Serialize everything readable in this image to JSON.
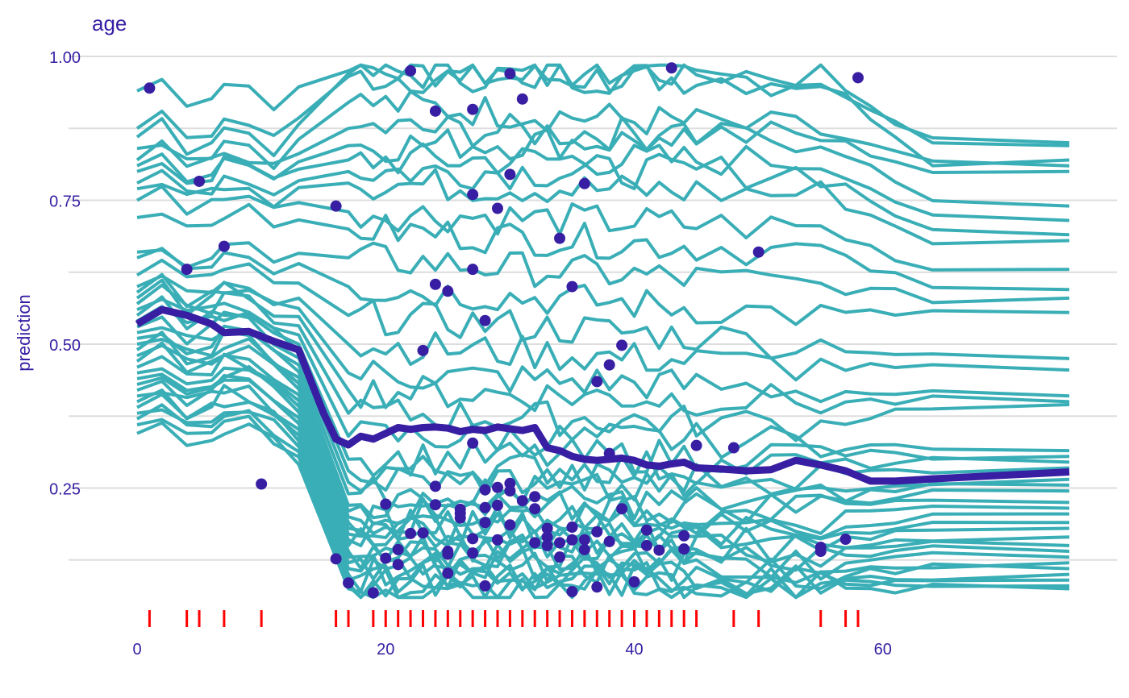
{
  "chart_data": {
    "type": "line",
    "title": "age",
    "xlabel": "",
    "ylabel": "prediction",
    "xlim": [
      0,
      75
    ],
    "ylim": [
      0.05,
      1.02
    ],
    "x_ticks": [
      0,
      20,
      40,
      60
    ],
    "x_tick_labels": [
      "0",
      "20",
      "40",
      "60"
    ],
    "y_ticks": [
      0.25,
      0.5,
      0.75,
      1.0
    ],
    "y_tick_labels": [
      "0.25",
      "0.50",
      "0.75",
      "1.00"
    ],
    "grid": true,
    "x_grid": [
      0,
      10,
      20,
      30,
      40,
      50,
      60,
      70
    ],
    "colors": {
      "profiles": "#3aaeb6",
      "mean": "#371ea3",
      "points": "#371ea3",
      "rug": "#ff0000",
      "text": "#371ea3",
      "grid": "#dddddd"
    },
    "x": [
      0,
      2,
      4,
      6,
      7,
      9,
      11,
      13,
      15,
      16,
      17,
      18,
      19,
      20,
      21,
      22,
      23,
      24,
      25,
      26,
      27,
      28,
      29,
      30,
      31,
      32,
      33,
      34,
      35,
      36,
      37,
      38,
      39,
      40,
      41,
      42,
      43,
      44,
      45,
      47,
      49,
      51,
      53,
      55,
      57,
      59,
      61,
      64,
      75
    ],
    "mean_profile": {
      "name": "mean",
      "y": [
        0.535,
        0.56,
        0.55,
        0.535,
        0.52,
        0.522,
        0.505,
        0.49,
        0.38,
        0.335,
        0.325,
        0.34,
        0.335,
        0.345,
        0.355,
        0.352,
        0.355,
        0.356,
        0.354,
        0.348,
        0.352,
        0.35,
        0.356,
        0.353,
        0.35,
        0.355,
        0.32,
        0.315,
        0.305,
        0.3,
        0.298,
        0.3,
        0.302,
        0.298,
        0.29,
        0.288,
        0.292,
        0.295,
        0.285,
        0.283,
        0.28,
        0.282,
        0.298,
        0.29,
        0.28,
        0.262,
        0.262,
        0.266,
        0.278
      ]
    },
    "profiles": [
      {
        "start": 0.94,
        "y_young": 0.94,
        "y_mid": 0.975,
        "y_old": 0.97,
        "y_end": 0.85
      },
      {
        "start": 0.875,
        "y_young": 0.875,
        "y_mid": 0.965,
        "y_old": 0.96,
        "y_end": 0.845
      },
      {
        "start": 0.86,
        "y_young": 0.86,
        "y_mid": 0.97,
        "y_old": 0.96,
        "y_end": 0.82
      },
      {
        "start": 0.84,
        "y_young": 0.84,
        "y_mid": 0.92,
        "y_old": 0.87,
        "y_end": 0.81
      },
      {
        "start": 0.82,
        "y_young": 0.82,
        "y_mid": 0.875,
        "y_old": 0.86,
        "y_end": 0.8
      },
      {
        "start": 0.81,
        "y_young": 0.81,
        "y_mid": 0.845,
        "y_old": 0.86,
        "y_end": 0.74
      },
      {
        "start": 0.8,
        "y_young": 0.8,
        "y_mid": 0.82,
        "y_old": 0.82,
        "y_end": 0.715
      },
      {
        "start": 0.78,
        "y_young": 0.78,
        "y_mid": 0.8,
        "y_old": 0.8,
        "y_end": 0.69
      },
      {
        "start": 0.77,
        "y_young": 0.77,
        "y_mid": 0.78,
        "y_old": 0.76,
        "y_end": 0.68
      },
      {
        "start": 0.75,
        "y_young": 0.75,
        "y_mid": 0.73,
        "y_old": 0.7,
        "y_end": 0.63
      },
      {
        "start": 0.72,
        "y_young": 0.72,
        "y_mid": 0.7,
        "y_old": 0.66,
        "y_end": 0.595
      },
      {
        "start": 0.66,
        "y_young": 0.66,
        "y_mid": 0.65,
        "y_old": 0.6,
        "y_end": 0.58
      },
      {
        "start": 0.65,
        "y_young": 0.65,
        "y_mid": 0.6,
        "y_old": 0.55,
        "y_end": 0.555
      },
      {
        "start": 0.62,
        "y_young": 0.62,
        "y_mid": 0.55,
        "y_old": 0.5,
        "y_end": 0.475
      },
      {
        "start": 0.6,
        "y_young": 0.6,
        "y_mid": 0.5,
        "y_old": 0.46,
        "y_end": 0.455
      },
      {
        "start": 0.59,
        "y_young": 0.59,
        "y_mid": 0.45,
        "y_old": 0.42,
        "y_end": 0.41
      },
      {
        "start": 0.58,
        "y_young": 0.58,
        "y_mid": 0.42,
        "y_old": 0.4,
        "y_end": 0.4
      },
      {
        "start": 0.57,
        "y_young": 0.57,
        "y_mid": 0.38,
        "y_old": 0.36,
        "y_end": 0.395
      },
      {
        "start": 0.56,
        "y_young": 0.56,
        "y_mid": 0.34,
        "y_old": 0.33,
        "y_end": 0.315
      },
      {
        "start": 0.55,
        "y_young": 0.55,
        "y_mid": 0.3,
        "y_old": 0.31,
        "y_end": 0.305
      },
      {
        "start": 0.54,
        "y_young": 0.54,
        "y_mid": 0.28,
        "y_old": 0.29,
        "y_end": 0.295
      },
      {
        "start": 0.53,
        "y_young": 0.53,
        "y_mid": 0.26,
        "y_old": 0.27,
        "y_end": 0.285
      },
      {
        "start": 0.52,
        "y_young": 0.52,
        "y_mid": 0.24,
        "y_old": 0.25,
        "y_end": 0.265
      },
      {
        "start": 0.51,
        "y_young": 0.51,
        "y_mid": 0.22,
        "y_old": 0.23,
        "y_end": 0.255
      },
      {
        "start": 0.5,
        "y_young": 0.5,
        "y_mid": 0.21,
        "y_old": 0.22,
        "y_end": 0.245
      },
      {
        "start": 0.49,
        "y_young": 0.49,
        "y_mid": 0.2,
        "y_old": 0.21,
        "y_end": 0.225
      },
      {
        "start": 0.48,
        "y_young": 0.48,
        "y_mid": 0.19,
        "y_old": 0.2,
        "y_end": 0.215
      },
      {
        "start": 0.47,
        "y_young": 0.47,
        "y_mid": 0.18,
        "y_old": 0.18,
        "y_end": 0.205
      },
      {
        "start": 0.46,
        "y_young": 0.46,
        "y_mid": 0.17,
        "y_old": 0.17,
        "y_end": 0.19
      },
      {
        "start": 0.45,
        "y_young": 0.45,
        "y_mid": 0.16,
        "y_old": 0.16,
        "y_end": 0.18
      },
      {
        "start": 0.44,
        "y_young": 0.44,
        "y_mid": 0.15,
        "y_old": 0.15,
        "y_end": 0.165
      },
      {
        "start": 0.43,
        "y_young": 0.43,
        "y_mid": 0.14,
        "y_old": 0.14,
        "y_end": 0.15
      },
      {
        "start": 0.42,
        "y_young": 0.42,
        "y_mid": 0.13,
        "y_old": 0.13,
        "y_end": 0.14
      },
      {
        "start": 0.41,
        "y_young": 0.41,
        "y_mid": 0.12,
        "y_old": 0.12,
        "y_end": 0.13
      },
      {
        "start": 0.4,
        "y_young": 0.4,
        "y_mid": 0.11,
        "y_old": 0.11,
        "y_end": 0.12
      },
      {
        "start": 0.39,
        "y_young": 0.39,
        "y_mid": 0.1,
        "y_old": 0.1,
        "y_end": 0.11
      },
      {
        "start": 0.38,
        "y_young": 0.38,
        "y_mid": 0.09,
        "y_old": 0.095,
        "y_end": 0.1
      },
      {
        "start": 0.37,
        "y_young": 0.37,
        "y_mid": 0.085,
        "y_old": 0.09,
        "y_end": 0.09
      },
      {
        "start": 0.36,
        "y_young": 0.36,
        "y_mid": 0.08,
        "y_old": 0.085,
        "y_end": 0.08
      },
      {
        "start": 0.345,
        "y_young": 0.345,
        "y_mid": 0.075,
        "y_old": 0.08,
        "y_end": 0.075
      }
    ],
    "observations": [
      {
        "x": 1,
        "y": 0.945
      },
      {
        "x": 4,
        "y": 0.63
      },
      {
        "x": 5,
        "y": 0.783
      },
      {
        "x": 7,
        "y": 0.67
      },
      {
        "x": 10,
        "y": 0.257
      },
      {
        "x": 16,
        "y": 0.74
      },
      {
        "x": 16,
        "y": 0.127
      },
      {
        "x": 17,
        "y": 0.085
      },
      {
        "x": 19,
        "y": 0.068
      },
      {
        "x": 20,
        "y": 0.222
      },
      {
        "x": 20,
        "y": 0.128
      },
      {
        "x": 21,
        "y": 0.143
      },
      {
        "x": 21,
        "y": 0.117
      },
      {
        "x": 22,
        "y": 0.975
      },
      {
        "x": 22,
        "y": 0.171
      },
      {
        "x": 23,
        "y": 0.489
      },
      {
        "x": 23,
        "y": 0.172
      },
      {
        "x": 24,
        "y": 0.905
      },
      {
        "x": 24,
        "y": 0.604
      },
      {
        "x": 24,
        "y": 0.253
      },
      {
        "x": 24,
        "y": 0.221
      },
      {
        "x": 25,
        "y": 0.592
      },
      {
        "x": 25,
        "y": 0.14
      },
      {
        "x": 25,
        "y": 0.135
      },
      {
        "x": 25,
        "y": 0.102
      },
      {
        "x": 26,
        "y": 0.213
      },
      {
        "x": 26,
        "y": 0.206
      },
      {
        "x": 26,
        "y": 0.198
      },
      {
        "x": 27,
        "y": 0.908
      },
      {
        "x": 27,
        "y": 0.76
      },
      {
        "x": 27,
        "y": 0.63
      },
      {
        "x": 27,
        "y": 0.328
      },
      {
        "x": 27,
        "y": 0.162
      },
      {
        "x": 27,
        "y": 0.137
      },
      {
        "x": 28,
        "y": 0.541
      },
      {
        "x": 28,
        "y": 0.247
      },
      {
        "x": 28,
        "y": 0.216
      },
      {
        "x": 28,
        "y": 0.19
      },
      {
        "x": 28,
        "y": 0.08
      },
      {
        "x": 29,
        "y": 0.736
      },
      {
        "x": 29,
        "y": 0.251
      },
      {
        "x": 29,
        "y": 0.22
      },
      {
        "x": 29,
        "y": 0.16
      },
      {
        "x": 30,
        "y": 0.97
      },
      {
        "x": 30,
        "y": 0.795
      },
      {
        "x": 30,
        "y": 0.258
      },
      {
        "x": 30,
        "y": 0.245
      },
      {
        "x": 30,
        "y": 0.186
      },
      {
        "x": 31,
        "y": 0.926
      },
      {
        "x": 31,
        "y": 0.228
      },
      {
        "x": 32,
        "y": 0.235
      },
      {
        "x": 32,
        "y": 0.214
      },
      {
        "x": 32,
        "y": 0.155
      },
      {
        "x": 33,
        "y": 0.18
      },
      {
        "x": 33,
        "y": 0.165
      },
      {
        "x": 33,
        "y": 0.15
      },
      {
        "x": 34,
        "y": 0.684
      },
      {
        "x": 34,
        "y": 0.155
      },
      {
        "x": 34,
        "y": 0.13
      },
      {
        "x": 35,
        "y": 0.6
      },
      {
        "x": 35,
        "y": 0.182
      },
      {
        "x": 35,
        "y": 0.16
      },
      {
        "x": 35,
        "y": 0.07
      },
      {
        "x": 36,
        "y": 0.779
      },
      {
        "x": 36,
        "y": 0.16
      },
      {
        "x": 36,
        "y": 0.143
      },
      {
        "x": 37,
        "y": 0.435
      },
      {
        "x": 37,
        "y": 0.174
      },
      {
        "x": 37,
        "y": 0.078
      },
      {
        "x": 38,
        "y": 0.464
      },
      {
        "x": 38,
        "y": 0.31
      },
      {
        "x": 38,
        "y": 0.157
      },
      {
        "x": 39,
        "y": 0.498
      },
      {
        "x": 39,
        "y": 0.214
      },
      {
        "x": 40,
        "y": 0.087
      },
      {
        "x": 41,
        "y": 0.177
      },
      {
        "x": 41,
        "y": 0.15
      },
      {
        "x": 42,
        "y": 0.142
      },
      {
        "x": 43,
        "y": 0.98
      },
      {
        "x": 44,
        "y": 0.167
      },
      {
        "x": 44,
        "y": 0.144
      },
      {
        "x": 45,
        "y": 0.324
      },
      {
        "x": 48,
        "y": 0.32
      },
      {
        "x": 50,
        "y": 0.66
      },
      {
        "x": 55,
        "y": 0.147
      },
      {
        "x": 55,
        "y": 0.14
      },
      {
        "x": 57,
        "y": 0.161
      },
      {
        "x": 58,
        "y": 0.963
      }
    ],
    "rug": [
      1,
      4,
      5,
      7,
      10,
      16,
      17,
      19,
      20,
      21,
      22,
      23,
      24,
      25,
      26,
      27,
      28,
      29,
      30,
      31,
      32,
      33,
      34,
      35,
      36,
      37,
      38,
      39,
      40,
      41,
      42,
      43,
      44,
      45,
      48,
      50,
      55,
      57,
      58
    ]
  }
}
